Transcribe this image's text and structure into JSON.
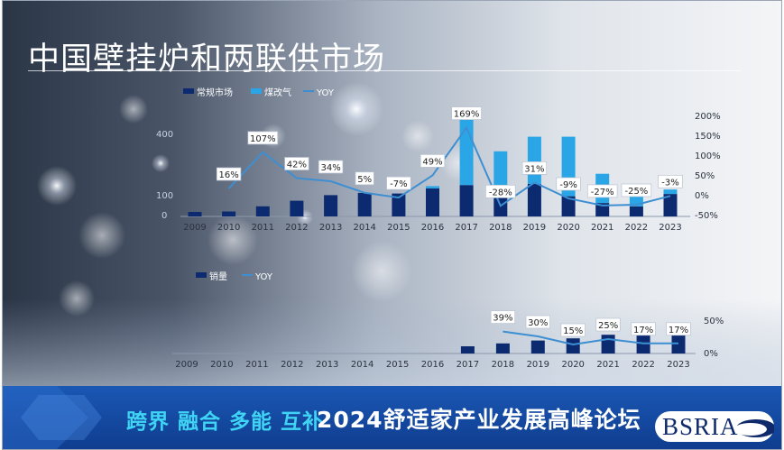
{
  "slide": {
    "title": "中国壁挂炉和两联供市场",
    "banner_slogan": "跨界 融合 多能 互补",
    "banner_title": "2024舒适家产业发展高峰论坛",
    "logo_text": "BSRIA"
  },
  "colors": {
    "dark_navy": "#0b2a6f",
    "light_blue": "#2aa6e6",
    "yoy_line": "#3e8fd2",
    "banner": "#1a57b4"
  },
  "chart_data": [
    {
      "type": "bar",
      "stacked": true,
      "categories": [
        "2009",
        "2010",
        "2011",
        "2012",
        "2013",
        "2014",
        "2015",
        "2016",
        "2017",
        "2018",
        "2019",
        "2020",
        "2021",
        "2022",
        "2023"
      ],
      "series": [
        {
          "name": "常规市场",
          "kind": "bar",
          "values": [
            20,
            22,
            45,
            70,
            95,
            105,
            102,
            125,
            140,
            125,
            145,
            90,
            60,
            45,
            100
          ]
        },
        {
          "name": "煤改气",
          "kind": "bar",
          "values": [
            0,
            0,
            0,
            0,
            0,
            0,
            0,
            10,
            300,
            165,
            210,
            265,
            130,
            75,
            20
          ]
        },
        {
          "name": "YOY",
          "kind": "line",
          "axis": "right",
          "values": [
            null,
            16,
            107,
            42,
            34,
            5,
            -7,
            49,
            169,
            -28,
            31,
            -9,
            -27,
            -25,
            -3
          ]
        }
      ],
      "yoy_labels": [
        "",
        "16%",
        "107%",
        "42%",
        "34%",
        "5%",
        "-7%",
        "49%",
        "169%",
        "-28%",
        "31%",
        "-9%",
        "-27%",
        "-25%",
        "-3%"
      ],
      "left_ticks_visible": [
        "400",
        "100",
        "0"
      ],
      "right_ticks": [
        "200%",
        "150%",
        "100%",
        "50%",
        "0%",
        "-50%"
      ],
      "ylim": [
        0,
        450
      ],
      "y2lim": [
        -50,
        200
      ],
      "legend_position": "top-left"
    },
    {
      "type": "bar",
      "categories": [
        "2009",
        "2010",
        "2011",
        "2012",
        "2013",
        "2014",
        "2015",
        "2016",
        "2017",
        "2018",
        "2019",
        "2020",
        "2021",
        "2022",
        "2023"
      ],
      "series": [
        {
          "name": "销量",
          "kind": "bar",
          "values": [
            null,
            null,
            null,
            null,
            null,
            null,
            null,
            null,
            10,
            14,
            18,
            21,
            26,
            30,
            35
          ]
        },
        {
          "name": "YOY",
          "kind": "line",
          "axis": "right",
          "values": [
            null,
            null,
            null,
            null,
            null,
            null,
            null,
            null,
            null,
            39,
            30,
            15,
            25,
            17,
            17
          ]
        }
      ],
      "yoy_labels": [
        "",
        "",
        "",
        "",
        "",
        "",
        "",
        "",
        "",
        "39%",
        "30%",
        "15%",
        "25%",
        "17%",
        "17%"
      ],
      "right_ticks": [
        "50%",
        "0%"
      ],
      "ylim": [
        0,
        40
      ],
      "y2lim": [
        0,
        60
      ],
      "legend_position": "top-left"
    }
  ]
}
